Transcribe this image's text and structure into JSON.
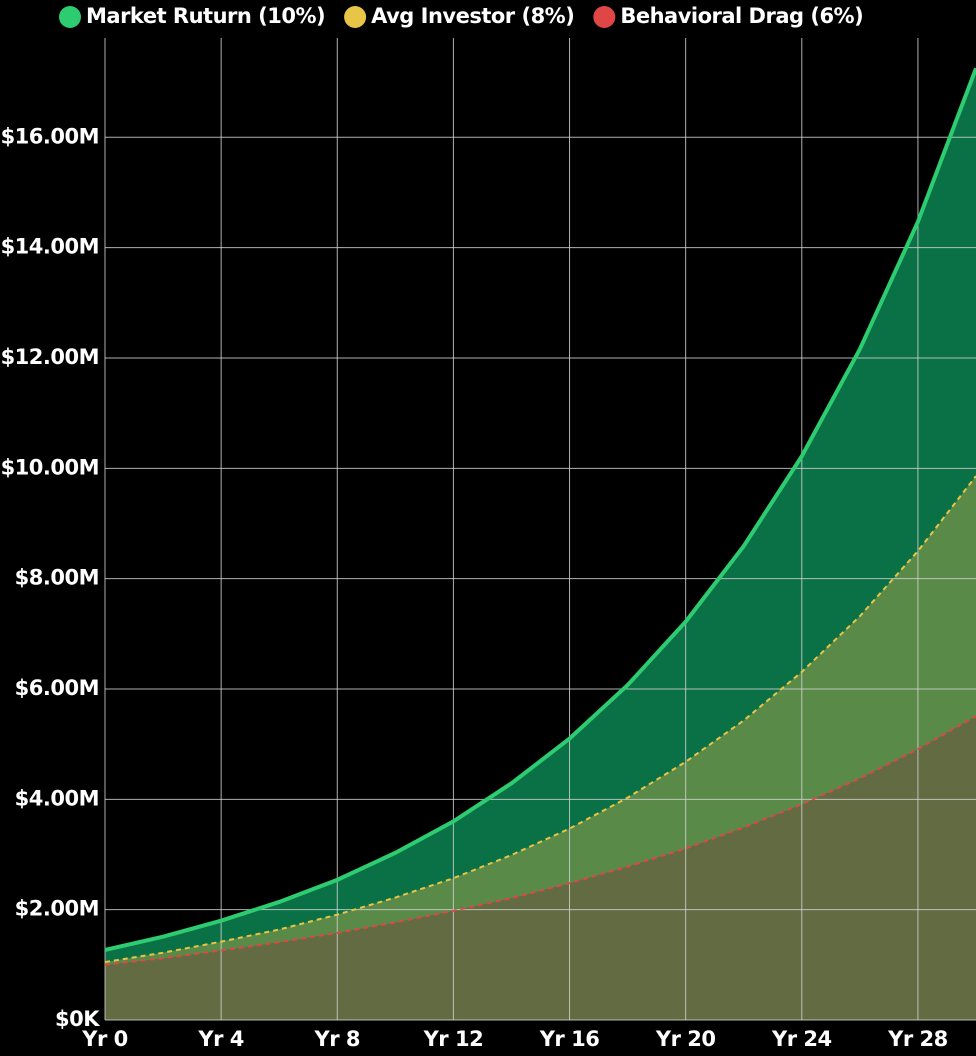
{
  "chart_data": {
    "type": "area",
    "x": [
      0,
      2,
      4,
      6,
      8,
      10,
      12,
      14,
      16,
      18,
      20,
      22,
      24,
      26,
      28,
      30
    ],
    "xlim": [
      0,
      30
    ],
    "xticks": [
      {
        "value": 0,
        "label": "Yr 0"
      },
      {
        "value": 4,
        "label": "Yr 4"
      },
      {
        "value": 8,
        "label": "Yr 8"
      },
      {
        "value": 12,
        "label": "Yr 12"
      },
      {
        "value": 16,
        "label": "Yr 16"
      },
      {
        "value": 20,
        "label": "Yr 20"
      },
      {
        "value": 24,
        "label": "Yr 24"
      },
      {
        "value": 28,
        "label": "Yr 28"
      }
    ],
    "ylim": [
      0,
      17800000
    ],
    "yticks": [
      {
        "value": 0,
        "label": "$0K"
      },
      {
        "value": 2000000,
        "label": "$2.00M"
      },
      {
        "value": 4000000,
        "label": "$4.00M"
      },
      {
        "value": 6000000,
        "label": "$6.00M"
      },
      {
        "value": 8000000,
        "label": "$8.00M"
      },
      {
        "value": 10000000,
        "label": "$10.00M"
      },
      {
        "value": 12000000,
        "label": "$12.00M"
      },
      {
        "value": 14000000,
        "label": "$14.00M"
      },
      {
        "value": 16000000,
        "label": "$16.00M"
      }
    ],
    "grid": true,
    "legend": "top",
    "series": [
      {
        "name": "Market Ruturn (10%)",
        "color": "#2ecc71",
        "fill": "#0a7046",
        "dashed": false,
        "values": [
          1270000,
          1510000,
          1800000,
          2140000,
          2540000,
          3030000,
          3600000,
          4290000,
          5100000,
          6070000,
          7220000,
          8590000,
          10220000,
          12160000,
          14470000,
          17250000
        ]
      },
      {
        "name": "Avg Investor (8%)",
        "color": "#e8c547",
        "fill": "#5a8a48",
        "dashed": true,
        "values": [
          1050000,
          1220000,
          1420000,
          1640000,
          1910000,
          2220000,
          2570000,
          2990000,
          3470000,
          4030000,
          4680000,
          5430000,
          6310000,
          7320000,
          8500000,
          9860000
        ]
      },
      {
        "name": "Behavioral Drag (6%)",
        "color": "#e04646",
        "fill": "#636b42",
        "dashed": true,
        "values": [
          1000000,
          1120000,
          1260000,
          1410000,
          1580000,
          1770000,
          1980000,
          2210000,
          2480000,
          2780000,
          3110000,
          3490000,
          3910000,
          4380000,
          4910000,
          5510000
        ]
      }
    ]
  }
}
